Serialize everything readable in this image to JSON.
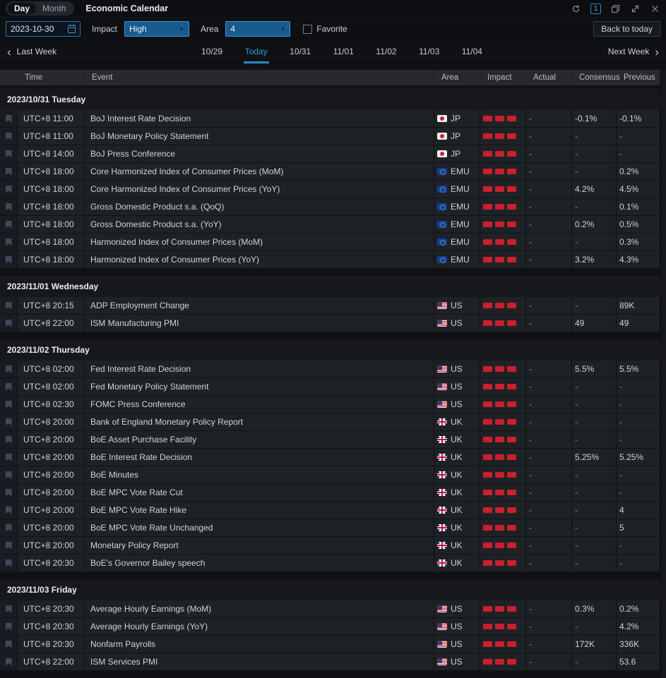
{
  "titlebar": {
    "tabs": [
      {
        "label": "Day"
      },
      {
        "label": "Month"
      }
    ],
    "title": "Economic Calendar",
    "window_count": "1",
    "icons": [
      "refresh-icon",
      "window-count-badge",
      "restore-icon",
      "expand-icon",
      "close-icon"
    ]
  },
  "filters": {
    "date_value": "2023-10-30",
    "impact_label": "Impact",
    "impact_value": "High",
    "area_label": "Area",
    "area_value": "4",
    "favorite_label": "Favorite",
    "favorite_checked": false,
    "back_to_today_label": "Back to today"
  },
  "week_nav": {
    "prev_label": "Last Week",
    "next_label": "Next Week",
    "prev_glyph": "‹",
    "next_glyph": "›",
    "days": [
      "10/29",
      "Today",
      "10/31",
      "11/01",
      "11/02",
      "11/03",
      "11/04"
    ],
    "active_day": "Today"
  },
  "table": {
    "columns": [
      "Time",
      "Event",
      "Area",
      "Impact",
      "Actual",
      "Consensus",
      "Previous"
    ],
    "sections": [
      {
        "date": "2023/10/31 Tuesday",
        "rows": [
          {
            "time": "UTC+8 11:00",
            "event": "BoJ Interest Rate Decision",
            "area": "JP",
            "impact": 3,
            "actual": "-",
            "consensus": "-0.1%",
            "previous": "-0.1%"
          },
          {
            "time": "UTC+8 11:00",
            "event": "BoJ Monetary Policy Statement",
            "area": "JP",
            "impact": 3,
            "actual": "-",
            "consensus": "-",
            "previous": "-"
          },
          {
            "time": "UTC+8 14:00",
            "event": "BoJ Press Conference",
            "area": "JP",
            "impact": 3,
            "actual": "-",
            "consensus": "-",
            "previous": "-"
          },
          {
            "time": "UTC+8 18:00",
            "event": "Core Harmonized Index of Consumer Prices (MoM)",
            "area": "EMU",
            "impact": 3,
            "actual": "-",
            "consensus": "-",
            "previous": "0.2%"
          },
          {
            "time": "UTC+8 18:00",
            "event": "Core Harmonized Index of Consumer Prices (YoY)",
            "area": "EMU",
            "impact": 3,
            "actual": "-",
            "consensus": "4.2%",
            "previous": "4.5%"
          },
          {
            "time": "UTC+8 18:00",
            "event": "Gross Domestic Product s.a. (QoQ)",
            "area": "EMU",
            "impact": 3,
            "actual": "-",
            "consensus": "-",
            "previous": "0.1%"
          },
          {
            "time": "UTC+8 18:00",
            "event": "Gross Domestic Product s.a. (YoY)",
            "area": "EMU",
            "impact": 3,
            "actual": "-",
            "consensus": "0.2%",
            "previous": "0.5%"
          },
          {
            "time": "UTC+8 18:00",
            "event": "Harmonized Index of Consumer Prices (MoM)",
            "area": "EMU",
            "impact": 3,
            "actual": "-",
            "consensus": "-",
            "previous": "0.3%"
          },
          {
            "time": "UTC+8 18:00",
            "event": "Harmonized Index of Consumer Prices (YoY)",
            "area": "EMU",
            "impact": 3,
            "actual": "-",
            "consensus": "3.2%",
            "previous": "4.3%"
          }
        ]
      },
      {
        "date": "2023/11/01 Wednesday",
        "rows": [
          {
            "time": "UTC+8 20:15",
            "event": "ADP Employment Change",
            "area": "US",
            "impact": 3,
            "actual": "-",
            "consensus": "-",
            "previous": "89K"
          },
          {
            "time": "UTC+8 22:00",
            "event": "ISM Manufacturing PMI",
            "area": "US",
            "impact": 3,
            "actual": "-",
            "consensus": "49",
            "previous": "49"
          }
        ]
      },
      {
        "date": "2023/11/02 Thursday",
        "rows": [
          {
            "time": "UTC+8 02:00",
            "event": "Fed Interest Rate Decision",
            "area": "US",
            "impact": 3,
            "actual": "-",
            "consensus": "5.5%",
            "previous": "5.5%"
          },
          {
            "time": "UTC+8 02:00",
            "event": "Fed Monetary Policy Statement",
            "area": "US",
            "impact": 3,
            "actual": "-",
            "consensus": "-",
            "previous": "-"
          },
          {
            "time": "UTC+8 02:30",
            "event": "FOMC Press Conference",
            "area": "US",
            "impact": 3,
            "actual": "-",
            "consensus": "-",
            "previous": "-"
          },
          {
            "time": "UTC+8 20:00",
            "event": "Bank of England Monetary Policy Report",
            "area": "UK",
            "impact": 3,
            "actual": "-",
            "consensus": "-",
            "previous": "-"
          },
          {
            "time": "UTC+8 20:00",
            "event": "BoE Asset Purchase Facility",
            "area": "UK",
            "impact": 3,
            "actual": "-",
            "consensus": "-",
            "previous": "-"
          },
          {
            "time": "UTC+8 20:00",
            "event": "BoE Interest Rate Decision",
            "area": "UK",
            "impact": 3,
            "actual": "-",
            "consensus": "5.25%",
            "previous": "5.25%"
          },
          {
            "time": "UTC+8 20:00",
            "event": "BoE Minutes",
            "area": "UK",
            "impact": 3,
            "actual": "-",
            "consensus": "-",
            "previous": "-"
          },
          {
            "time": "UTC+8 20:00",
            "event": "BoE MPC Vote Rate Cut",
            "area": "UK",
            "impact": 3,
            "actual": "-",
            "consensus": "-",
            "previous": "-"
          },
          {
            "time": "UTC+8 20:00",
            "event": "BoE MPC Vote Rate Hike",
            "area": "UK",
            "impact": 3,
            "actual": "-",
            "consensus": "-",
            "previous": "4"
          },
          {
            "time": "UTC+8 20:00",
            "event": "BoE MPC Vote Rate Unchanged",
            "area": "UK",
            "impact": 3,
            "actual": "-",
            "consensus": "-",
            "previous": "5"
          },
          {
            "time": "UTC+8 20:00",
            "event": "Monetary Policy Report",
            "area": "UK",
            "impact": 3,
            "actual": "-",
            "consensus": "-",
            "previous": "-"
          },
          {
            "time": "UTC+8 20:30",
            "event": "BoE's Governor Bailey speech",
            "area": "UK",
            "impact": 3,
            "actual": "-",
            "consensus": "-",
            "previous": "-"
          }
        ]
      },
      {
        "date": "2023/11/03 Friday",
        "rows": [
          {
            "time": "UTC+8 20:30",
            "event": "Average Hourly Earnings (MoM)",
            "area": "US",
            "impact": 3,
            "actual": "-",
            "consensus": "0.3%",
            "previous": "0.2%"
          },
          {
            "time": "UTC+8 20:30",
            "event": "Average Hourly Earnings (YoY)",
            "area": "US",
            "impact": 3,
            "actual": "-",
            "consensus": "-",
            "previous": "4.2%"
          },
          {
            "time": "UTC+8 20:30",
            "event": "Nonfarm Payrolls",
            "area": "US",
            "impact": 3,
            "actual": "-",
            "consensus": "172K",
            "previous": "336K"
          },
          {
            "time": "UTC+8 22:00",
            "event": "ISM Services PMI",
            "area": "US",
            "impact": 3,
            "actual": "-",
            "consensus": "-",
            "previous": "53.6"
          }
        ]
      }
    ]
  },
  "colors": {
    "accent_blue": "#2e9bd9",
    "impact_red": "#c8202e",
    "row_bg": "#1e2125",
    "header_bg": "#27292d",
    "select_fill": "#175a8e"
  }
}
